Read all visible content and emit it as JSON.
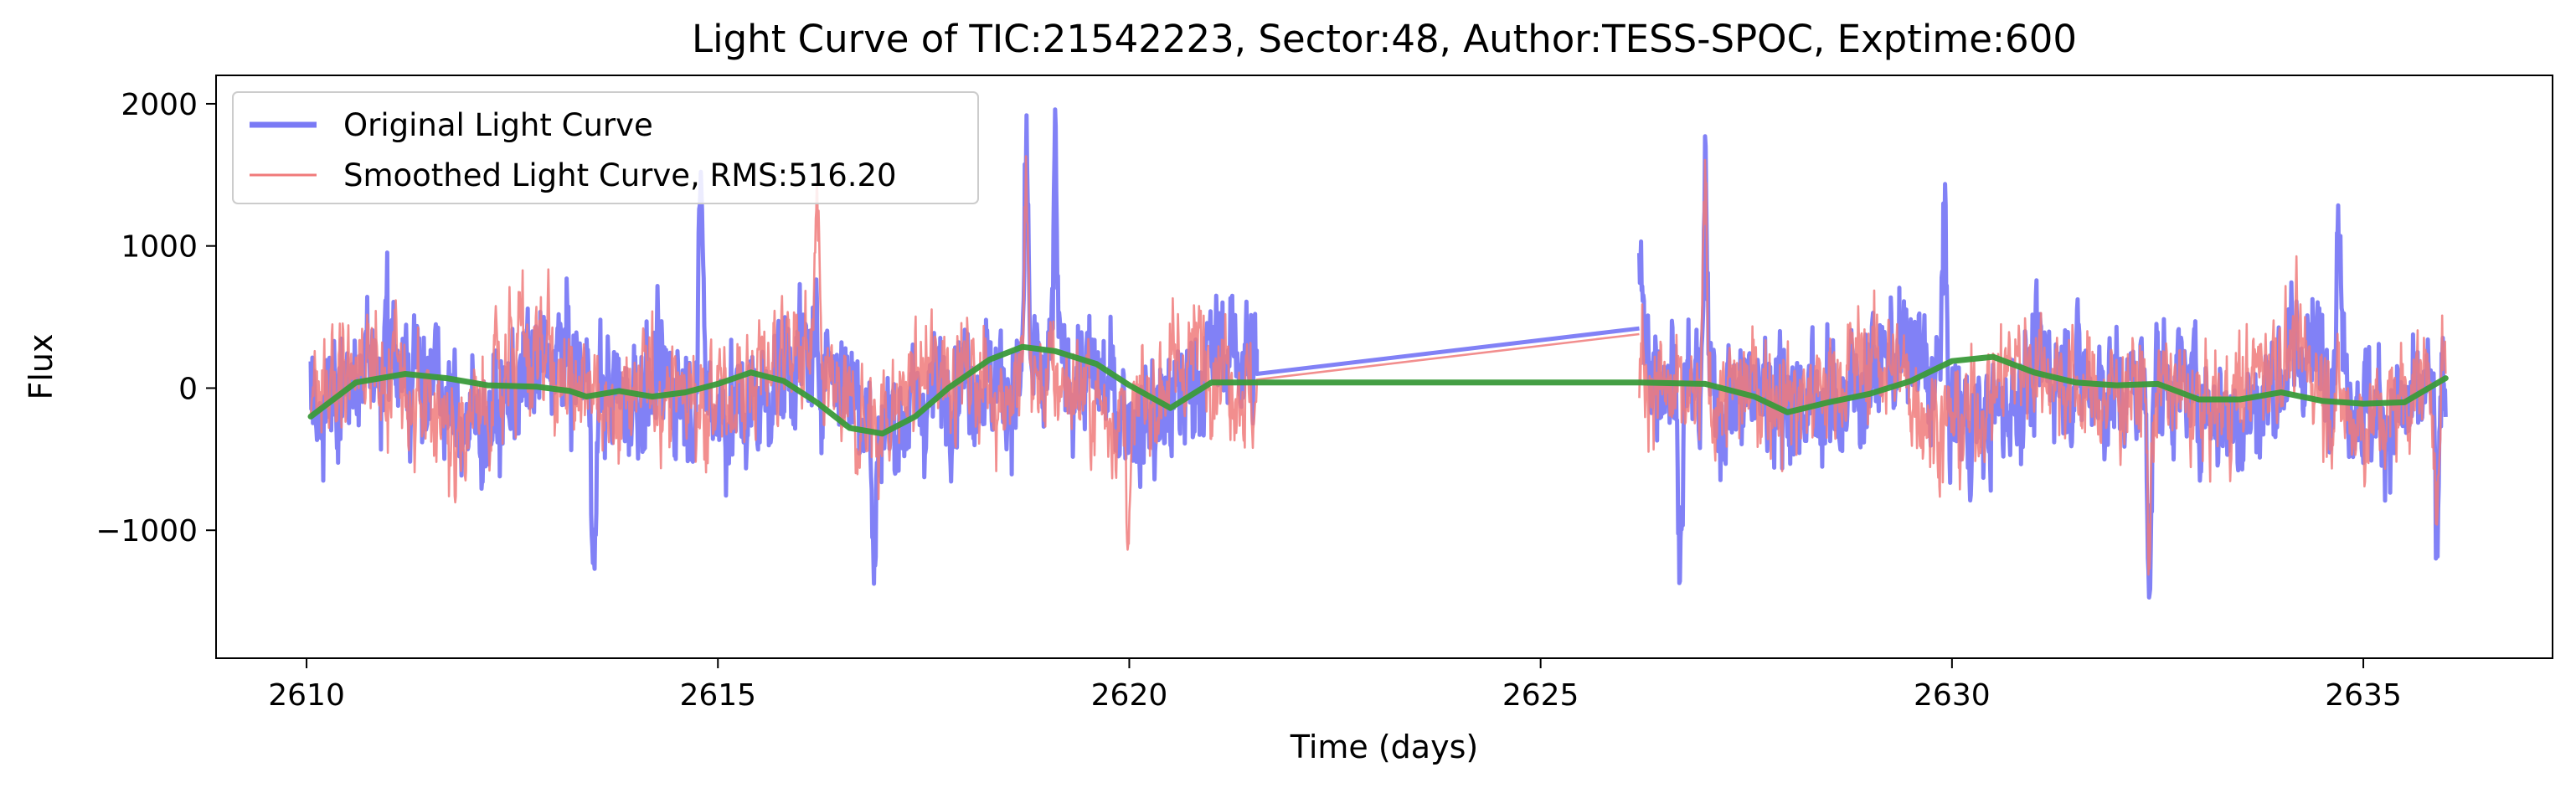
{
  "chart_data": {
    "type": "line",
    "title": "Light Curve of TIC:21542223, Sector:48, Author:TESS-SPOC, Exptime:600",
    "xlabel": "Time (days)",
    "ylabel": "Flux",
    "xlim": [
      2608.9,
      2637.3
    ],
    "ylim": [
      -1900,
      2200
    ],
    "xticks": [
      {
        "value": 2610,
        "label": "2610"
      },
      {
        "value": 2615,
        "label": "2615"
      },
      {
        "value": 2620,
        "label": "2620"
      },
      {
        "value": 2625,
        "label": "2625"
      },
      {
        "value": 2630,
        "label": "2630"
      },
      {
        "value": 2635,
        "label": "2635"
      }
    ],
    "yticks": [
      {
        "value": -1000,
        "label": "−1000"
      },
      {
        "value": 0,
        "label": "0"
      },
      {
        "value": 1000,
        "label": "1000"
      },
      {
        "value": 2000,
        "label": "2000"
      }
    ],
    "grid": false,
    "legend_position": "upper-left",
    "segments": [
      [
        2610.05,
        2621.55
      ],
      [
        2626.2,
        2636.0
      ]
    ],
    "series": [
      {
        "name": "Original Light Curve",
        "color": "#7a7af5",
        "style": "noisy",
        "amplitude": 480,
        "peaks": [
          [
            2613.5,
            -1700
          ],
          [
            2614.8,
            1780
          ],
          [
            2618.75,
            2100
          ],
          [
            2619.1,
            1850
          ],
          [
            2616.9,
            -1420
          ],
          [
            2627.0,
            1780
          ],
          [
            2626.7,
            -1350
          ],
          [
            2632.4,
            -1450
          ],
          [
            2635.9,
            -1500
          ],
          [
            2629.9,
            1600
          ],
          [
            2634.7,
            1450
          ],
          [
            2626.2,
            1050
          ]
        ],
        "gap_bridge": [
          [
            2621.55,
            100
          ],
          [
            2626.2,
            420
          ]
        ]
      },
      {
        "name": "Smoothed Light Curve, RMS:516.20",
        "color": "#f07a7a",
        "style": "noisy",
        "amplitude": 440,
        "peaks": [
          [
            2616.2,
            1400
          ],
          [
            2618.75,
            1800
          ],
          [
            2627.0,
            1750
          ],
          [
            2632.4,
            -1400
          ],
          [
            2620.0,
            -1000
          ],
          [
            2635.9,
            -1450
          ]
        ],
        "gap_bridge": [
          [
            2621.55,
            60
          ],
          [
            2626.2,
            380
          ]
        ]
      },
      {
        "name": "",
        "color": "#3a9a3a",
        "style": "trend",
        "x": [
          2610.05,
          2610.6,
          2611.2,
          2611.7,
          2612.2,
          2612.8,
          2613.2,
          2613.4,
          2613.8,
          2614.2,
          2614.6,
          2615.0,
          2615.4,
          2615.8,
          2616.2,
          2616.6,
          2617.0,
          2617.4,
          2617.8,
          2618.3,
          2618.7,
          2619.1,
          2619.6,
          2620.0,
          2620.5,
          2621.0,
          2621.55,
          2626.2,
          2627.0,
          2627.6,
          2628.0,
          2628.5,
          2629.0,
          2629.5,
          2630.0,
          2630.5,
          2631.0,
          2631.5,
          2632.0,
          2632.5,
          2633.0,
          2633.5,
          2634.0,
          2634.5,
          2635.0,
          2635.5,
          2636.0
        ],
        "y": [
          -200,
          40,
          100,
          70,
          20,
          10,
          -20,
          -60,
          -20,
          -60,
          -30,
          30,
          110,
          50,
          -100,
          -280,
          -320,
          -200,
          0,
          200,
          290,
          260,
          170,
          20,
          -140,
          40,
          40,
          40,
          30,
          -60,
          -170,
          -100,
          -40,
          50,
          190,
          220,
          110,
          40,
          20,
          30,
          -80,
          -80,
          -30,
          -90,
          -110,
          -100,
          70
        ]
      }
    ]
  }
}
